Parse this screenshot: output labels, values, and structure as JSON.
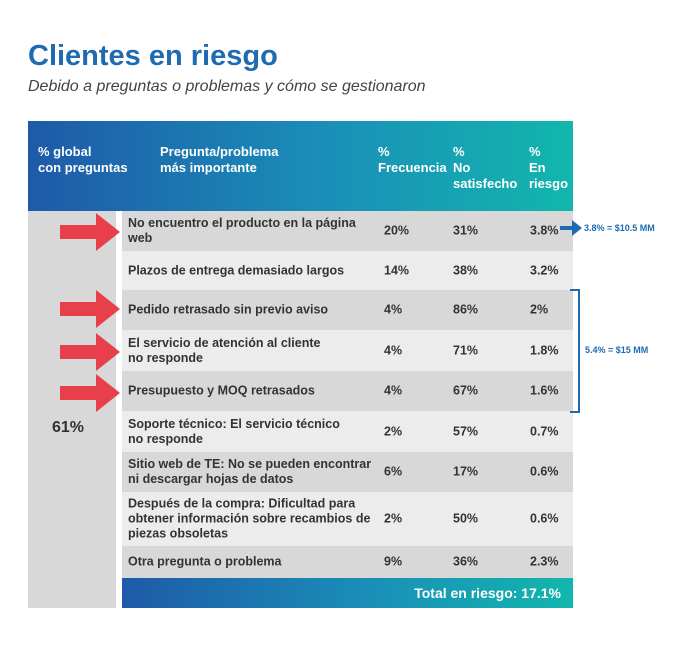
{
  "title": "Clientes en riesgo",
  "subtitle": "Debido a preguntas o problemas y cómo se gestionaron",
  "headers": {
    "global": "% global\ncon preguntas",
    "question": "Pregunta/problema\nmás importante",
    "frequency": "%\nFrecuencia",
    "unsatisfied": "%\nNo\nsatisfecho",
    "risk": "%\nEn\nriesgo"
  },
  "global_value": "61%",
  "rows": [
    {
      "question": "No encuentro el producto en la página web",
      "frequency": "20%",
      "unsatisfied": "31%",
      "risk": "3.8%"
    },
    {
      "question": "Plazos de entrega demasiado largos",
      "frequency": "14%",
      "unsatisfied": "38%",
      "risk": "3.2%"
    },
    {
      "question": "Pedido retrasado sin previo aviso",
      "frequency": "4%",
      "unsatisfied": "86%",
      "risk": "2%"
    },
    {
      "question": "El servicio de atención al cliente\nno responde",
      "frequency": "4%",
      "unsatisfied": "71%",
      "risk": "1.8%"
    },
    {
      "question": "Presupuesto y MOQ retrasados",
      "frequency": "4%",
      "unsatisfied": "67%",
      "risk": "1.6%"
    },
    {
      "question": "Soporte técnico: El servicio técnico\nno responde",
      "frequency": "2%",
      "unsatisfied": "57%",
      "risk": "0.7%"
    },
    {
      "question": "Sitio web de TE: No se pueden encontrar\nni descargar hojas de datos",
      "frequency": "6%",
      "unsatisfied": "17%",
      "risk": "0.6%"
    },
    {
      "question": "Después de la compra: Dificultad para\nobtener información sobre recambios de\npiezas obsoletas",
      "frequency": "2%",
      "unsatisfied": "50%",
      "risk": "0.6%"
    },
    {
      "question": "Otra pregunta o problema",
      "frequency": "9%",
      "unsatisfied": "36%",
      "risk": "2.3%"
    }
  ],
  "total": "Total en riesgo: 17.1%",
  "notes": {
    "single": "3.8% = $10.5 MM",
    "group": "5.4% = $15 MM"
  },
  "colors": {
    "title": "#1f6bb2",
    "arrow_red": "#e8404a",
    "gradient_start": "#1e5aa8",
    "gradient_end": "#12b6ad"
  }
}
